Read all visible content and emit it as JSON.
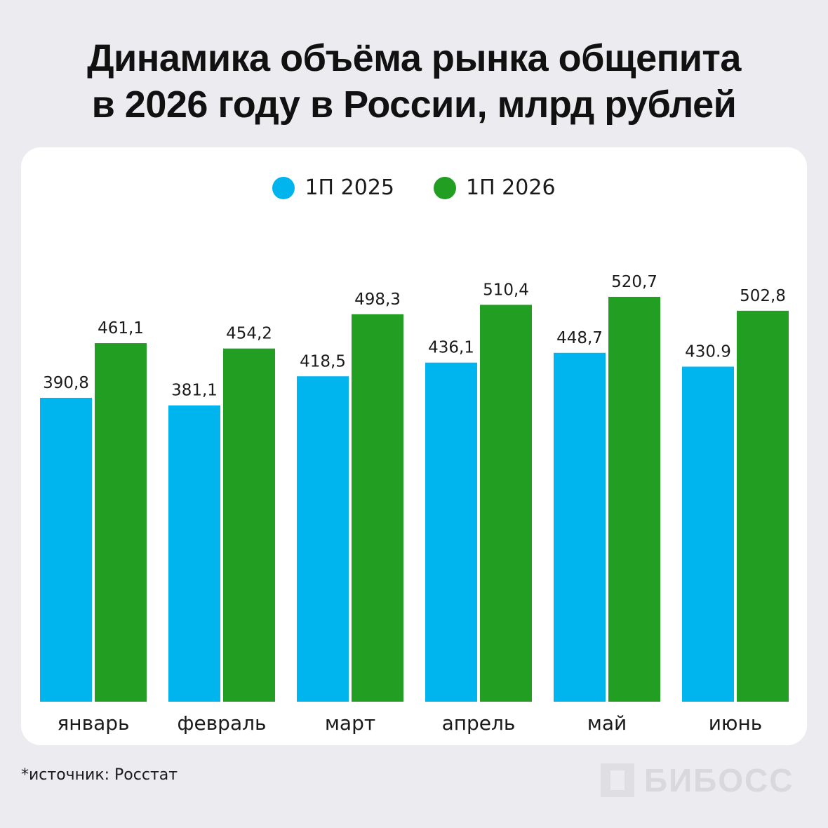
{
  "title": {
    "line1": "Динамика объёма рынка общепита",
    "line2": "в 2026 году в России, млрд рублей"
  },
  "source": "*источник: Росстат",
  "logo": {
    "text": "БИБОСС"
  },
  "chart_data": {
    "type": "bar",
    "categories": [
      "январь",
      "февраль",
      "март",
      "апрель",
      "май",
      "июнь"
    ],
    "series": [
      {
        "name": "1П 2025",
        "color": "#00b4ee",
        "values": [
          390.8,
          381.1,
          418.5,
          436.1,
          448.7,
          430.9
        ],
        "labels": [
          "390,8",
          "381,1",
          "418,5",
          "436,1",
          "448,7",
          "430.9"
        ]
      },
      {
        "name": "1П 2026",
        "color": "#229e22",
        "values": [
          461.1,
          454.2,
          498.3,
          510.4,
          520.7,
          502.8
        ],
        "labels": [
          "461,1",
          "454,2",
          "498,3",
          "510,4",
          "520,7",
          "502,8"
        ]
      }
    ],
    "ylim": [
      0,
      520.7
    ],
    "legend": "top-center",
    "grid": false
  }
}
